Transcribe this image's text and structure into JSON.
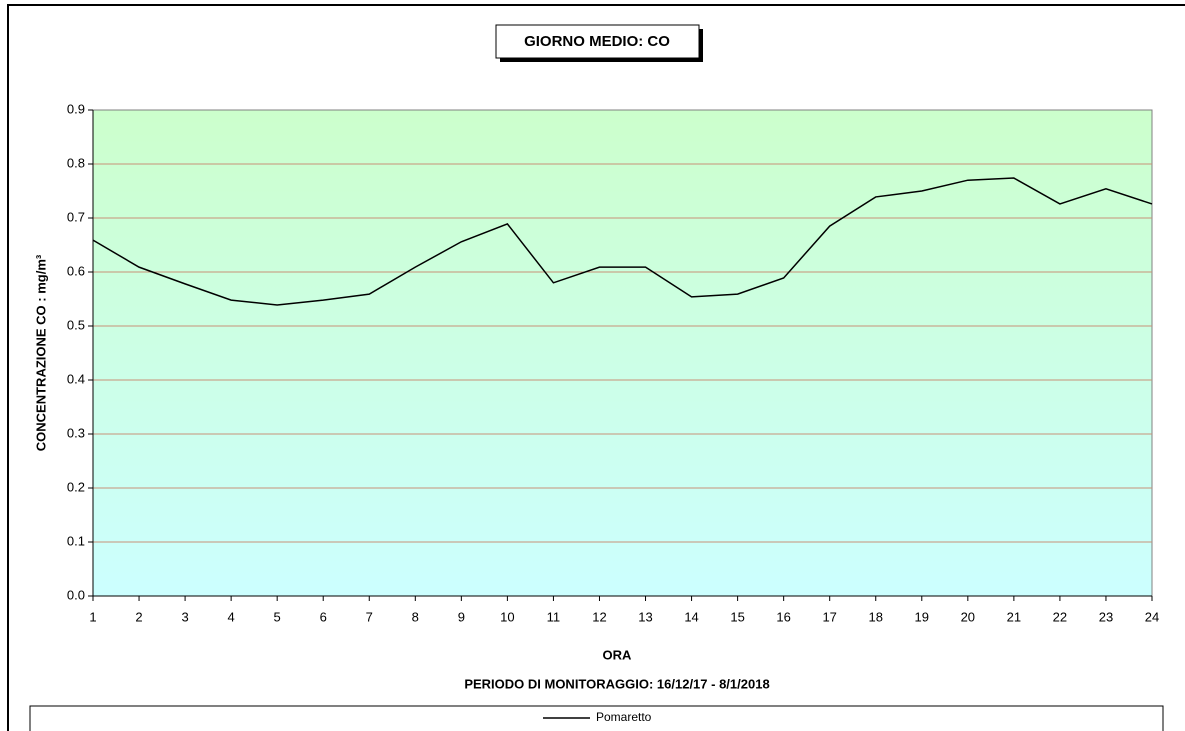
{
  "chart_data": {
    "type": "line",
    "title": "GIORNO MEDIO: CO",
    "x_label": "ORA",
    "subtitle": "PERIODO DI MONITORAGGIO: 16/12/17 - 8/1/2018",
    "y_label": "CONCENTRAZIONE CO :  mg/m³",
    "x": [
      1,
      2,
      3,
      4,
      5,
      6,
      7,
      8,
      9,
      10,
      11,
      12,
      13,
      14,
      15,
      16,
      17,
      18,
      19,
      20,
      21,
      22,
      23,
      24
    ],
    "xlim": [
      1,
      24
    ],
    "xticks": [
      1,
      2,
      3,
      4,
      5,
      6,
      7,
      8,
      9,
      10,
      11,
      12,
      13,
      14,
      15,
      16,
      17,
      18,
      19,
      20,
      21,
      22,
      23,
      24
    ],
    "series": [
      {
        "name": "Pomaretto",
        "color": "#000000",
        "values": [
          0.659,
          0.609,
          0.578,
          0.548,
          0.539,
          0.548,
          0.559,
          0.609,
          0.656,
          0.689,
          0.58,
          0.609,
          0.609,
          0.554,
          0.559,
          0.589,
          0.685,
          0.739,
          0.75,
          0.77,
          0.774,
          0.726,
          0.754,
          0.726
        ]
      }
    ],
    "ylim": [
      0,
      0.9
    ],
    "yticks": [
      {
        "value": 0,
        "label": "0.0"
      },
      0.1,
      0.2,
      0.3,
      0.4,
      0.5,
      0.6,
      0.7,
      0.8,
      0.9
    ],
    "grid": true,
    "grid_color": "#c89078",
    "legend": "bottom"
  }
}
